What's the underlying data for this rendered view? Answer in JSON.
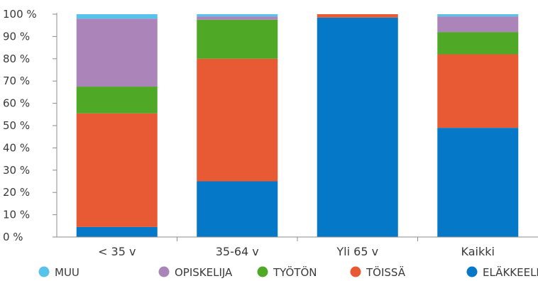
{
  "chart_data": {
    "type": "bar",
    "stacked": true,
    "categories": [
      "< 35 v",
      "35-64 v",
      "Yli 65 v",
      "Kaikki"
    ],
    "series": [
      {
        "name": "ELÄKKEELLÄ",
        "color": "#0579c7",
        "values": [
          4.5,
          25,
          98.5,
          49
        ]
      },
      {
        "name": "TÖISSÄ",
        "color": "#e85a33",
        "values": [
          51,
          55,
          1.5,
          33
        ]
      },
      {
        "name": "TYÖTÖN",
        "color": "#4fa826",
        "values": [
          12,
          17.5,
          0,
          10
        ]
      },
      {
        "name": "OPISKELIJA",
        "color": "#ab84b9",
        "values": [
          30.5,
          1.5,
          0,
          7
        ]
      },
      {
        "name": "MUU",
        "color": "#58c3ea",
        "values": [
          2,
          1,
          0,
          1
        ]
      }
    ],
    "legend_order": [
      "MUU",
      "OPISKELIJA",
      "TYÖTÖN",
      "TÖISSÄ",
      "ELÄKKEELLÄ"
    ],
    "ylim": [
      0,
      100
    ],
    "yticks": [
      0,
      10,
      20,
      30,
      40,
      50,
      60,
      70,
      80,
      90,
      100
    ],
    "ytick_suffix": " %",
    "grid": false,
    "legend_position": "bottom"
  }
}
